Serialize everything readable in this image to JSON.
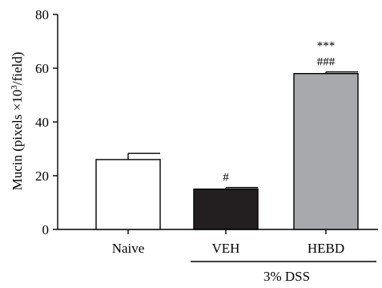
{
  "chart_data": {
    "type": "bar",
    "categories": [
      "Naive",
      "VEH",
      "HEBD"
    ],
    "values": [
      26,
      15,
      58
    ],
    "errors": [
      2.3,
      0.6,
      0.6
    ],
    "bar_colors": [
      "#ffffff",
      "#231f20",
      "#a7a9ac"
    ],
    "annotations": [
      {
        "category": "VEH",
        "lines": [
          "#"
        ]
      },
      {
        "category": "HEBD",
        "lines": [
          "***",
          "###"
        ]
      }
    ],
    "group_label": {
      "text": "3% DSS",
      "categories": [
        "VEH",
        "HEBD"
      ]
    },
    "ylabel": {
      "main": "Mucin (pixels ×10",
      "sup": "3",
      "tail": "/field)"
    },
    "ylim": [
      0,
      80
    ],
    "yticks": [
      0,
      20,
      40,
      60,
      80
    ],
    "grid": false
  }
}
